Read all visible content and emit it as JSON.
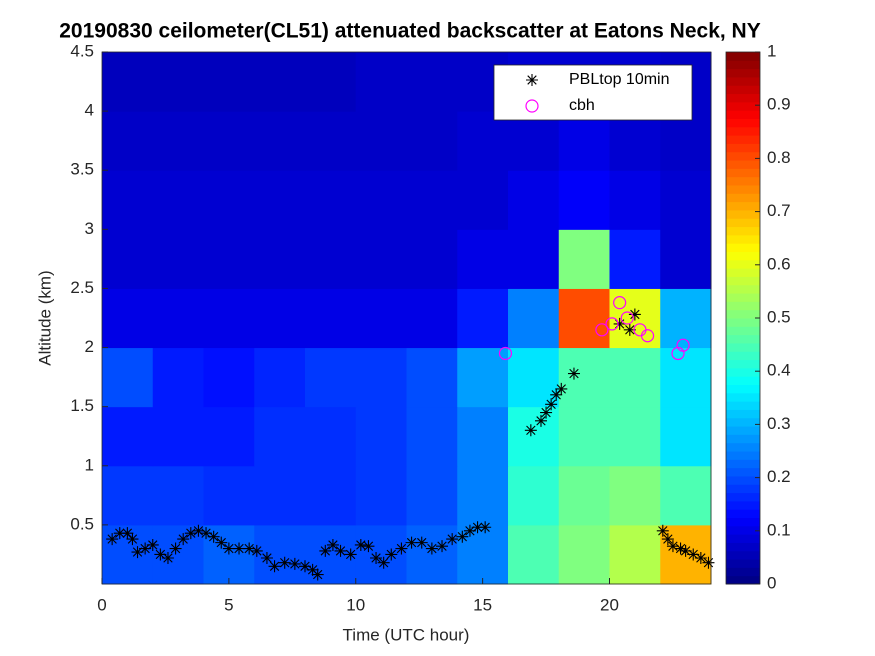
{
  "chart_data": {
    "type": "heatmap",
    "title": "20190830 ceilometer(CL51) attenuated backscatter at Eatons Neck, NY",
    "xlabel": "Time (UTC hour)",
    "ylabel": "Altitude (km)",
    "xlim": [
      0,
      24
    ],
    "ylim": [
      0,
      4.5
    ],
    "xticks": [
      0,
      5,
      10,
      15,
      20
    ],
    "yticks": [
      0.5,
      1,
      1.5,
      2,
      2.5,
      3,
      3.5,
      4,
      4.5
    ],
    "colormap": "jet",
    "clim": [
      0,
      1
    ],
    "cticks": [
      0,
      0.1,
      0.2,
      0.3,
      0.4,
      0.5,
      0.6,
      0.7,
      0.8,
      0.9,
      1
    ],
    "legend": "upper right",
    "heatmap": {
      "xbins": [
        0,
        2,
        4,
        6,
        8,
        10,
        12,
        14,
        16,
        18,
        20,
        22,
        24
      ],
      "ybins": [
        0,
        0.5,
        1,
        1.5,
        2,
        2.5,
        3,
        3.5,
        4,
        4.5
      ],
      "z": [
        [
          0.2,
          0.2,
          0.22,
          0.2,
          0.2,
          0.2,
          0.22,
          0.25,
          0.45,
          0.5,
          0.55,
          0.7
        ],
        [
          0.18,
          0.18,
          0.17,
          0.17,
          0.17,
          0.18,
          0.2,
          0.25,
          0.42,
          0.48,
          0.5,
          0.45
        ],
        [
          0.15,
          0.15,
          0.15,
          0.17,
          0.17,
          0.18,
          0.2,
          0.25,
          0.4,
          0.45,
          0.45,
          0.35
        ],
        [
          0.2,
          0.15,
          0.14,
          0.16,
          0.18,
          0.18,
          0.2,
          0.28,
          0.35,
          0.45,
          0.45,
          0.35
        ],
        [
          0.1,
          0.1,
          0.1,
          0.1,
          0.1,
          0.1,
          0.1,
          0.15,
          0.25,
          0.8,
          0.6,
          0.3
        ],
        [
          0.08,
          0.08,
          0.08,
          0.08,
          0.08,
          0.08,
          0.08,
          0.1,
          0.1,
          0.5,
          0.15,
          0.08
        ],
        [
          0.08,
          0.08,
          0.08,
          0.08,
          0.08,
          0.08,
          0.08,
          0.08,
          0.1,
          0.12,
          0.1,
          0.08
        ],
        [
          0.07,
          0.07,
          0.07,
          0.07,
          0.07,
          0.07,
          0.07,
          0.08,
          0.08,
          0.1,
          0.08,
          0.07
        ],
        [
          0.06,
          0.06,
          0.06,
          0.06,
          0.06,
          0.07,
          0.07,
          0.07,
          0.08,
          0.08,
          0.08,
          0.07
        ]
      ]
    },
    "series": [
      {
        "name": "PBLtop 10min",
        "marker": "asterisk",
        "color": "#000000",
        "x": [
          0.4,
          0.7,
          1.0,
          1.2,
          1.4,
          1.7,
          2.0,
          2.3,
          2.6,
          2.9,
          3.2,
          3.5,
          3.8,
          4.1,
          4.4,
          4.7,
          5.0,
          5.4,
          5.8,
          6.1,
          6.5,
          6.8,
          7.2,
          7.6,
          8.0,
          8.3,
          8.5,
          8.8,
          9.1,
          9.4,
          9.8,
          10.2,
          10.5,
          10.8,
          11.1,
          11.4,
          11.8,
          12.2,
          12.6,
          13.0,
          13.4,
          13.8,
          14.2,
          14.5,
          14.8,
          15.1,
          16.9,
          17.3,
          17.5,
          17.7,
          17.9,
          18.1,
          18.6,
          20.4,
          20.8,
          21.0,
          22.1,
          22.3,
          22.5,
          22.8,
          23.0,
          23.3,
          23.6,
          23.9
        ],
        "values": [
          0.38,
          0.43,
          0.43,
          0.38,
          0.27,
          0.3,
          0.33,
          0.25,
          0.22,
          0.3,
          0.38,
          0.43,
          0.45,
          0.43,
          0.4,
          0.35,
          0.3,
          0.3,
          0.3,
          0.28,
          0.22,
          0.15,
          0.18,
          0.17,
          0.15,
          0.12,
          0.08,
          0.28,
          0.33,
          0.28,
          0.25,
          0.33,
          0.32,
          0.22,
          0.18,
          0.25,
          0.3,
          0.35,
          0.35,
          0.3,
          0.32,
          0.38,
          0.4,
          0.45,
          0.48,
          0.48,
          1.3,
          1.38,
          1.45,
          1.52,
          1.6,
          1.65,
          1.78,
          2.2,
          2.15,
          2.28,
          0.45,
          0.38,
          0.32,
          0.3,
          0.28,
          0.25,
          0.22,
          0.18
        ]
      },
      {
        "name": "cbh",
        "marker": "circle",
        "color": "#ff00ff",
        "x": [
          15.9,
          19.7,
          20.1,
          20.4,
          20.7,
          21.2,
          21.5,
          22.7,
          22.9
        ],
        "values": [
          1.95,
          2.15,
          2.2,
          2.38,
          2.25,
          2.15,
          2.1,
          1.95,
          2.02
        ]
      }
    ]
  }
}
